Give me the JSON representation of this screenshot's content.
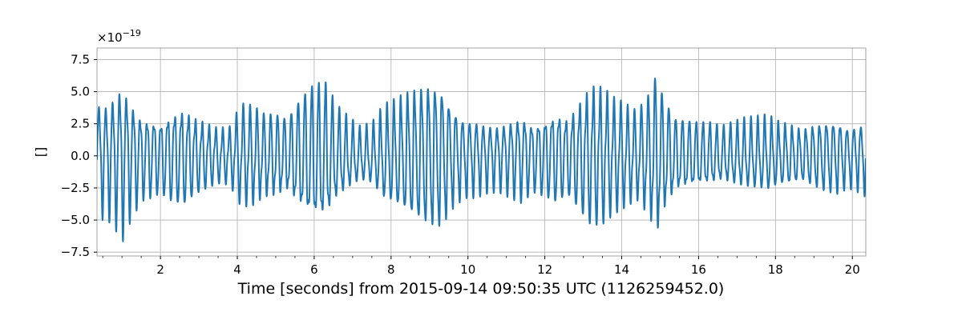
{
  "chart_data": {
    "type": "line",
    "title": "",
    "xlabel": "Time [seconds] from 2015-09-14 09:50:35 UTC (1126259452.0)",
    "ylabel": "[]",
    "y_offset": {
      "base": "×10",
      "exponent": "−19"
    },
    "xlim": [
      0.35,
      20.35
    ],
    "ylim": [
      -7.8,
      8.4
    ],
    "x_ticks": [
      2,
      4,
      6,
      8,
      10,
      12,
      14,
      16,
      18,
      20
    ],
    "x_tick_labels": [
      "2",
      "4",
      "6",
      "8",
      "10",
      "12",
      "14",
      "16",
      "18",
      "20"
    ],
    "y_ticks": [
      -7.5,
      -5.0,
      -2.5,
      0.0,
      2.5,
      5.0,
      7.5
    ],
    "y_tick_labels": [
      "−7.5",
      "−5.0",
      "−2.5",
      "0.0",
      "2.5",
      "5.0",
      "7.5"
    ],
    "grid": true,
    "color": "#1f77b4",
    "series": [
      {
        "x": [
          0.35,
          0.6,
          0.85,
          1.0,
          1.2,
          1.5,
          1.8,
          2.0,
          2.3,
          2.6,
          2.9,
          3.2,
          3.5,
          3.8,
          4.1,
          4.4,
          4.7,
          5.0,
          5.3,
          5.6,
          5.9,
          6.1,
          6.3,
          6.6,
          6.9,
          7.2,
          7.5,
          7.8,
          8.1,
          8.4,
          8.7,
          9.0,
          9.3,
          9.6,
          9.9,
          10.2,
          10.5,
          10.8,
          11.1,
          11.4,
          11.7,
          12.0,
          12.3,
          12.6,
          12.9,
          13.2,
          13.5,
          13.8,
          14.1,
          14.4,
          14.7,
          14.9,
          15.1,
          15.4,
          15.7,
          16.0,
          16.3,
          16.6,
          16.9,
          17.2,
          17.5,
          17.8,
          18.1,
          18.4,
          18.7,
          19.0,
          19.3,
          19.6,
          19.9,
          20.2,
          20.35
        ],
        "envelope": [
          5.2,
          5.0,
          6.0,
          7.0,
          5.5,
          3.8,
          3.6,
          3.3,
          4.2,
          4.5,
          3.6,
          3.0,
          2.5,
          2.6,
          4.6,
          4.5,
          3.8,
          3.8,
          3.4,
          5.0,
          6.2,
          6.4,
          6.3,
          4.2,
          3.2,
          2.4,
          2.7,
          4.2,
          4.8,
          5.5,
          6.1,
          6.6,
          6.4,
          4.6,
          3.5,
          3.4,
          3.0,
          2.9,
          3.4,
          3.9,
          3.1,
          3.6,
          4.2,
          3.6,
          5.0,
          6.4,
          6.2,
          5.2,
          4.6,
          4.0,
          5.5,
          7.4,
          5.2,
          3.4,
          3.2,
          3.0,
          2.9,
          2.5,
          2.8,
          3.1,
          3.2,
          3.4,
          2.9,
          2.7,
          2.4,
          2.9,
          3.2,
          3.3,
          2.7,
          3.0,
          3.3
        ]
      }
    ]
  }
}
